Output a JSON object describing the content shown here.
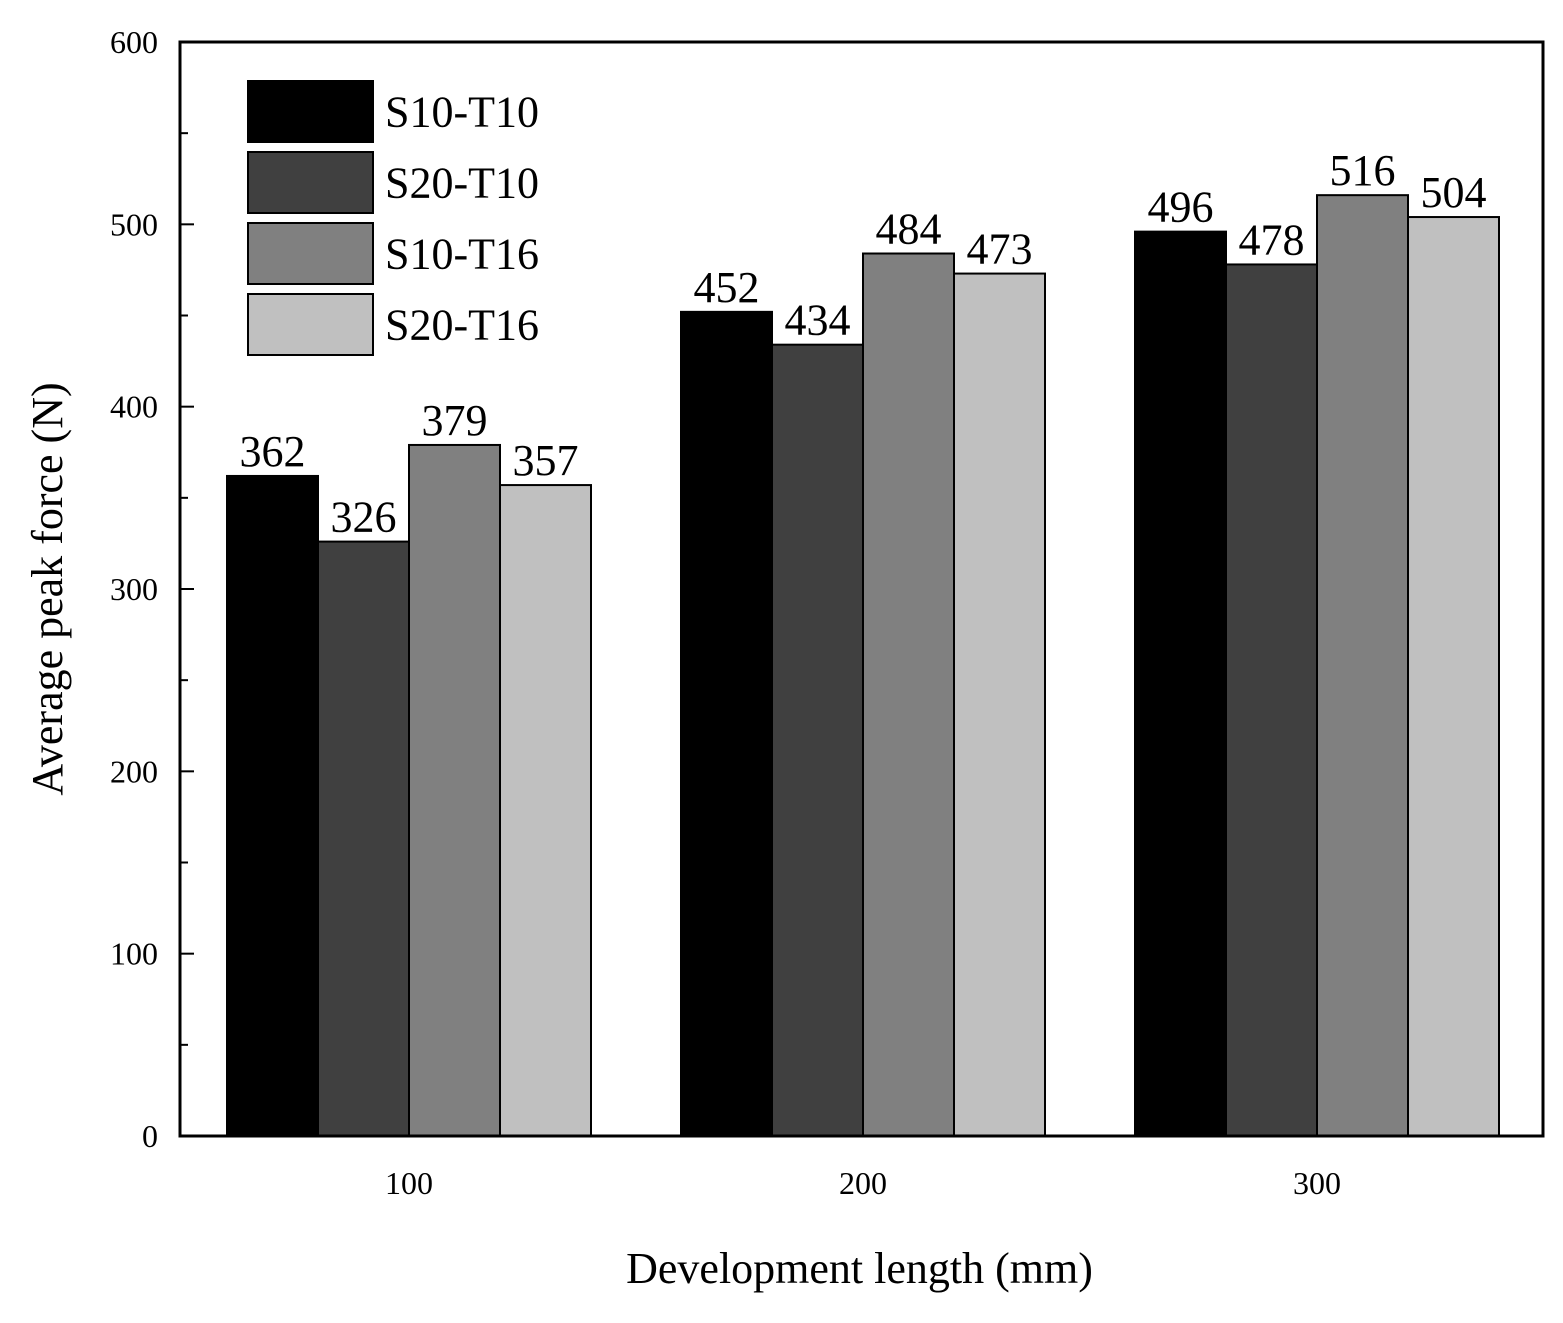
{
  "chart_data": {
    "type": "bar",
    "title": "",
    "xlabel": "Development length (mm)",
    "ylabel": "Average peak force (N)",
    "categories": [
      "100",
      "200",
      "300"
    ],
    "ylim": [
      0,
      600
    ],
    "yticks": [
      0,
      100,
      200,
      300,
      400,
      500,
      600
    ],
    "grid": false,
    "legend_position": "top-left",
    "series": [
      {
        "name": "S10-T10",
        "color": "#000000",
        "values": [
          362,
          452,
          496
        ]
      },
      {
        "name": "S20-T10",
        "color": "#404040",
        "values": [
          326,
          434,
          478
        ]
      },
      {
        "name": "S10-T16",
        "color": "#808080",
        "values": [
          379,
          484,
          516
        ]
      },
      {
        "name": "S20-T16",
        "color": "#c0c0c0",
        "values": [
          357,
          473,
          504
        ]
      }
    ]
  }
}
